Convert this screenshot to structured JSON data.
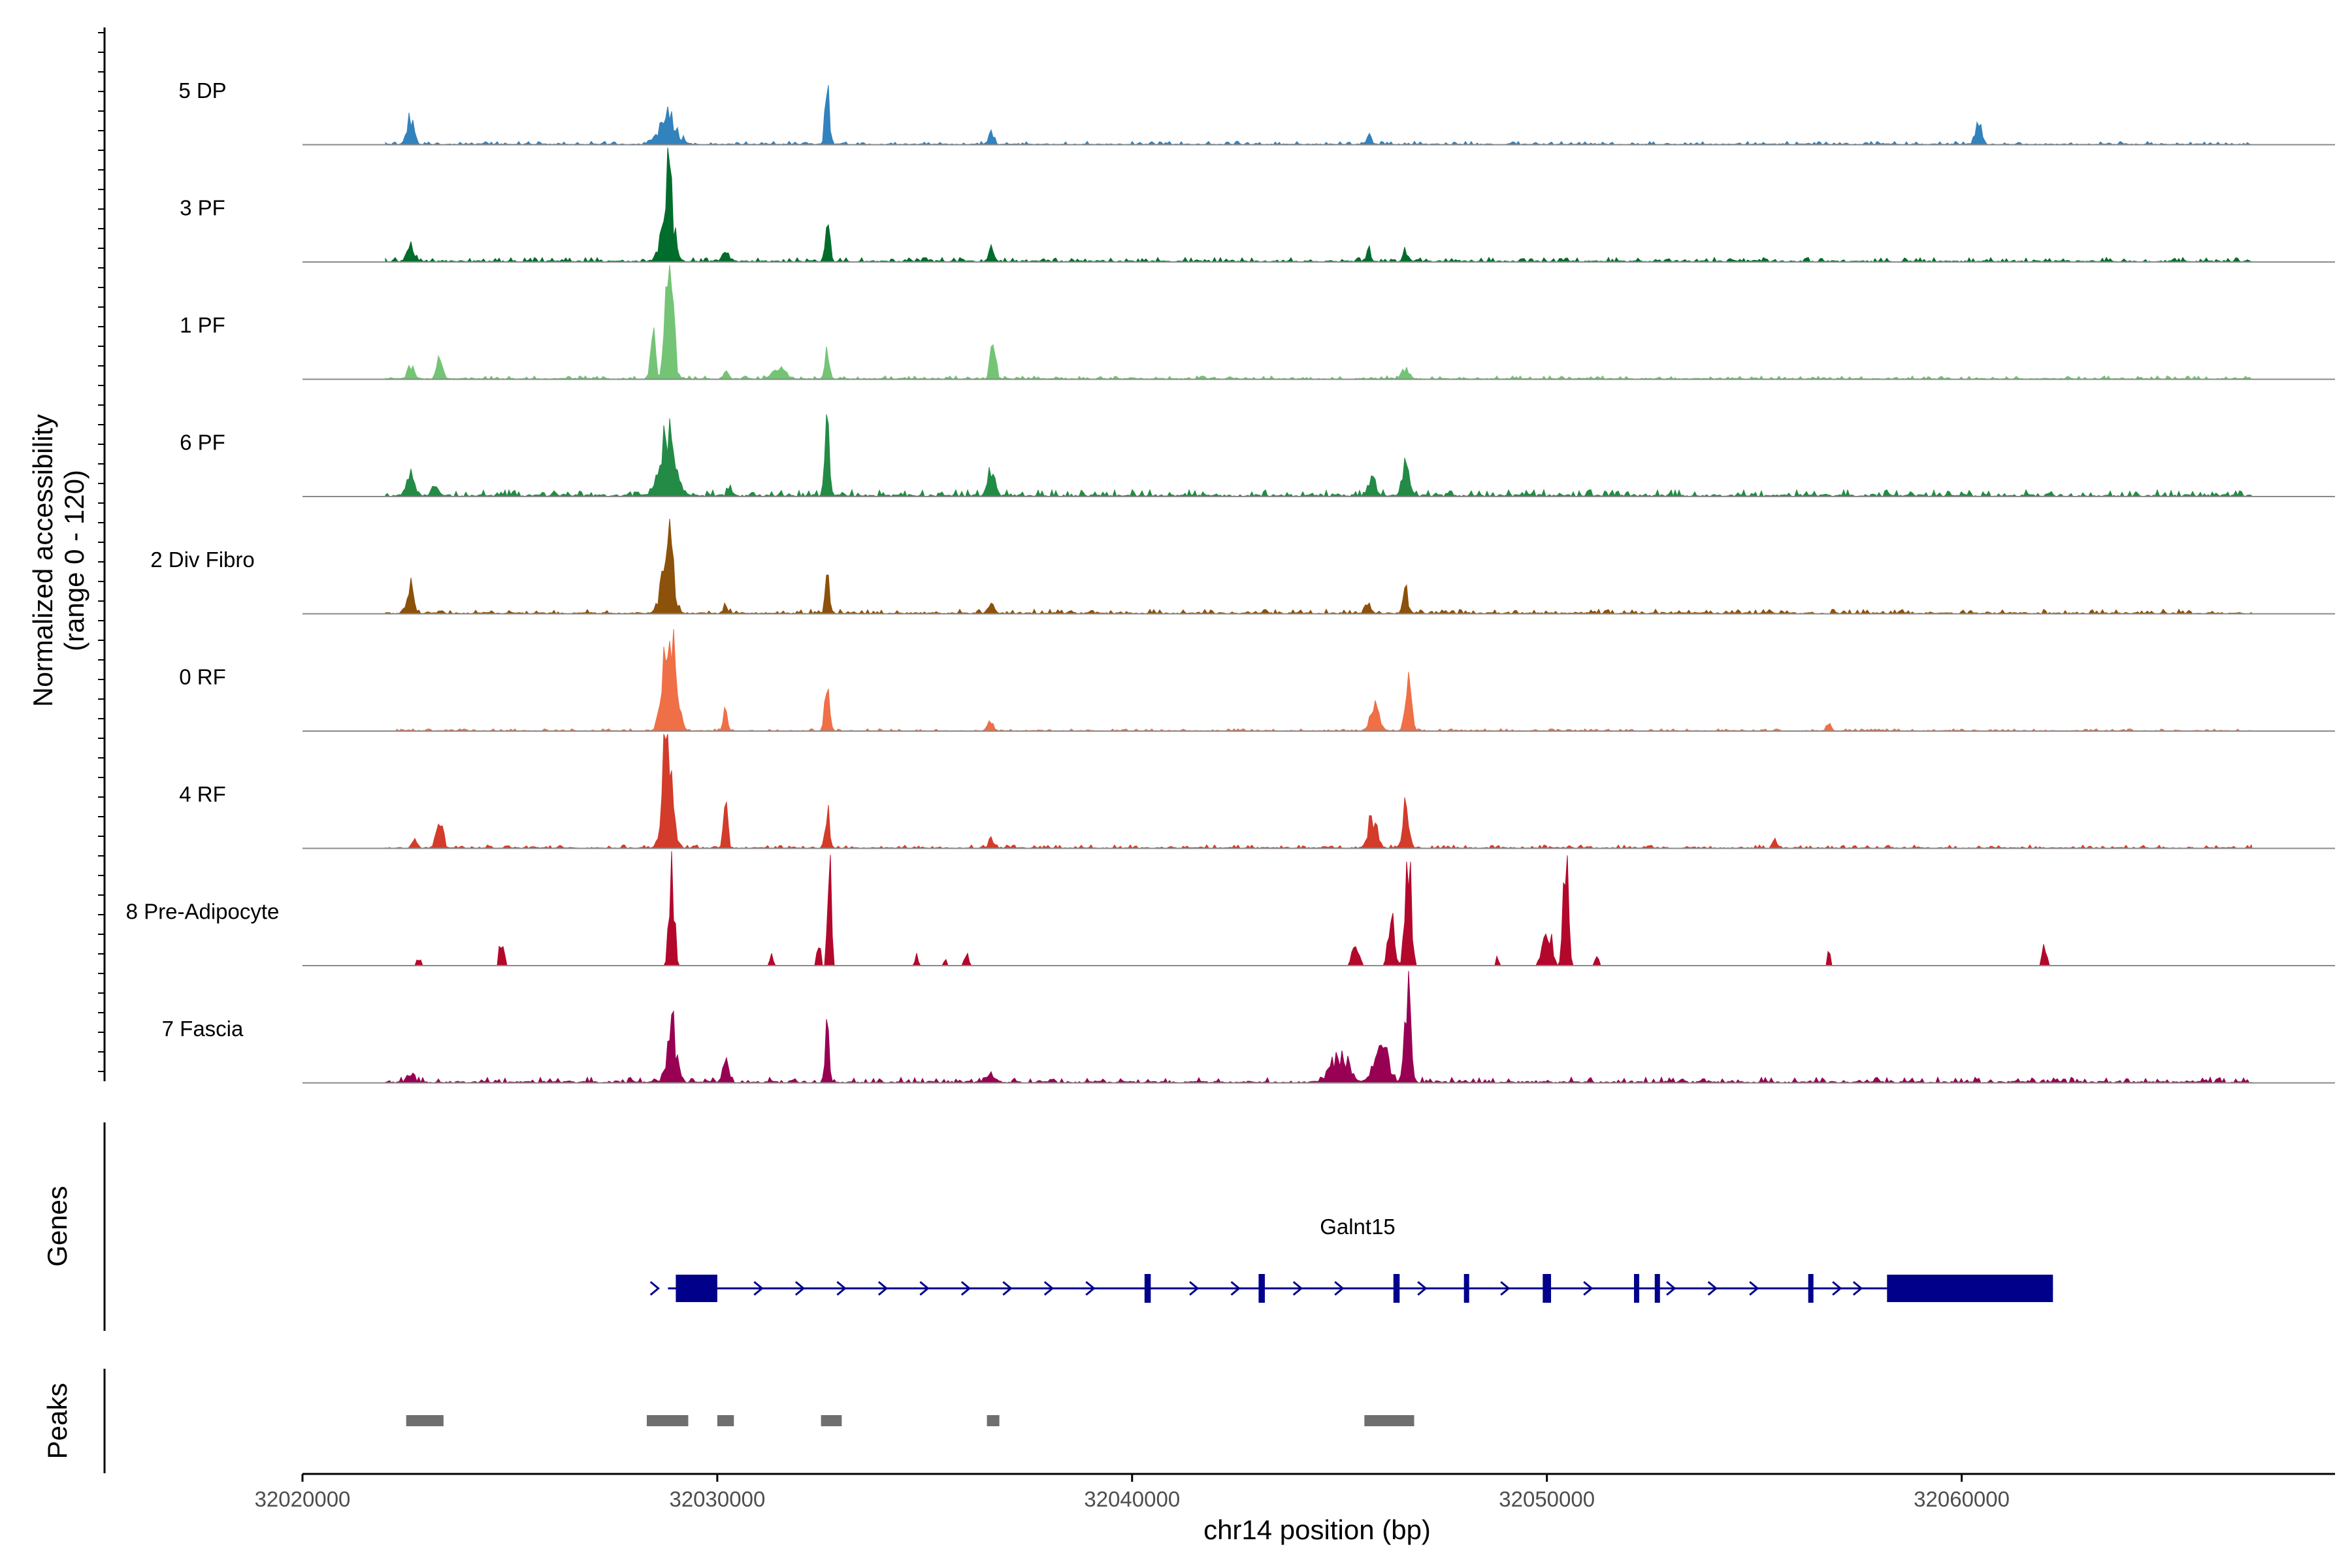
{
  "chart_data": {
    "type": "coverage",
    "title": "",
    "ylabel_line1": "Normalized accessibility",
    "ylabel_line2": "(range 0 - 120)",
    "y_range": [
      0,
      120
    ],
    "xlabel": "chr14 position (bp)",
    "xlim": [
      32020000,
      32069000
    ],
    "x_ticks": [
      32020000,
      32030000,
      32040000,
      32050000,
      32060000
    ],
    "x_tick_labels": [
      "32020000",
      "32030000",
      "32040000",
      "32050000",
      "32060000"
    ],
    "signal_extent": [
      32022000,
      32067000
    ],
    "tracks": [
      {
        "name": "5 DP",
        "color": "#3282BD",
        "baseline": 3,
        "peaks": [
          [
            32022600,
            25,
            80
          ],
          [
            32028800,
            28,
            200
          ],
          [
            32032650,
            60,
            50
          ],
          [
            32036600,
            12,
            60
          ],
          [
            32045700,
            8,
            60
          ],
          [
            32060400,
            22,
            70
          ]
        ]
      },
      {
        "name": "3 PF",
        "color": "#006D2C",
        "baseline": 4,
        "peaks": [
          [
            32022600,
            16,
            80
          ],
          [
            32028800,
            95,
            120
          ],
          [
            32030200,
            12,
            60
          ],
          [
            32032650,
            48,
            50
          ],
          [
            32036600,
            14,
            60
          ],
          [
            32045700,
            10,
            60
          ],
          [
            32046600,
            12,
            60
          ]
        ]
      },
      {
        "name": "1 PF",
        "color": "#74C476",
        "baseline": 3,
        "peaks": [
          [
            32022600,
            15,
            70
          ],
          [
            32023300,
            20,
            70
          ],
          [
            32028450,
            40,
            60
          ],
          [
            32028850,
            120,
            90
          ],
          [
            32030200,
            8,
            60
          ],
          [
            32031500,
            10,
            150
          ],
          [
            32032650,
            30,
            50
          ],
          [
            32036650,
            45,
            60
          ],
          [
            32046600,
            12,
            80
          ]
        ]
      },
      {
        "name": "6 PF",
        "color": "#238B45",
        "baseline": 6,
        "peaks": [
          [
            32022600,
            28,
            80
          ],
          [
            32023200,
            12,
            70
          ],
          [
            32028800,
            75,
            160
          ],
          [
            32030300,
            15,
            50
          ],
          [
            32032650,
            70,
            50
          ],
          [
            32036600,
            25,
            80
          ],
          [
            32045800,
            20,
            80
          ],
          [
            32046600,
            45,
            80
          ]
        ]
      },
      {
        "name": "2 Div Fibro",
        "color": "#8C510A",
        "baseline": 4,
        "peaks": [
          [
            32022600,
            28,
            70
          ],
          [
            32028800,
            75,
            130
          ],
          [
            32030200,
            8,
            60
          ],
          [
            32032650,
            35,
            50
          ],
          [
            32036600,
            12,
            70
          ],
          [
            32045700,
            10,
            60
          ],
          [
            32046600,
            20,
            60
          ]
        ]
      },
      {
        "name": "0 RF",
        "color": "#EF6F46",
        "baseline": 2,
        "peaks": [
          [
            32028850,
            105,
            140
          ],
          [
            32030200,
            20,
            50
          ],
          [
            32032650,
            55,
            50
          ],
          [
            32036600,
            12,
            60
          ],
          [
            32045850,
            30,
            100
          ],
          [
            32046650,
            62,
            70
          ],
          [
            32056800,
            10,
            50
          ]
        ]
      },
      {
        "name": "4 RF",
        "color": "#D33B2B",
        "baseline": 3,
        "peaks": [
          [
            32022700,
            8,
            60
          ],
          [
            32023300,
            25,
            80
          ],
          [
            32028800,
            120,
            110
          ],
          [
            32030200,
            45,
            50
          ],
          [
            32032650,
            40,
            50
          ],
          [
            32036600,
            10,
            60
          ],
          [
            32045800,
            35,
            100
          ],
          [
            32046600,
            40,
            70
          ],
          [
            32055500,
            10,
            50
          ]
        ]
      },
      {
        "name": "8 Pre-Adipocyte",
        "color": "#B3082C",
        "baseline": 0,
        "peaks": [
          [
            32022800,
            8,
            50
          ],
          [
            32024800,
            25,
            60
          ],
          [
            32028900,
            105,
            60
          ],
          [
            32031300,
            12,
            40
          ],
          [
            32032450,
            25,
            40
          ],
          [
            32032700,
            98,
            45
          ],
          [
            32034800,
            10,
            40
          ],
          [
            32035500,
            8,
            40
          ],
          [
            32036000,
            12,
            50
          ],
          [
            32045400,
            25,
            80
          ],
          [
            32046250,
            50,
            70
          ],
          [
            32046650,
            120,
            70
          ],
          [
            32048800,
            8,
            40
          ],
          [
            32050000,
            45,
            100
          ],
          [
            32050450,
            110,
            60
          ],
          [
            32051200,
            10,
            40
          ],
          [
            32056800,
            15,
            30
          ],
          [
            32062000,
            22,
            50
          ]
        ]
      },
      {
        "name": "7 Fascia",
        "color": "#980053",
        "baseline": 5,
        "peaks": [
          [
            32022600,
            8,
            80
          ],
          [
            32028900,
            60,
            110
          ],
          [
            32030200,
            18,
            70
          ],
          [
            32032650,
            52,
            50
          ],
          [
            32036600,
            8,
            80
          ],
          [
            32045000,
            30,
            200
          ],
          [
            32046000,
            42,
            150
          ],
          [
            32046650,
            103,
            70
          ]
        ]
      }
    ],
    "genes": {
      "label": "Genes",
      "gene_name": "Galnt15",
      "color": "#00008B",
      "start": 32029000,
      "end": 32062200,
      "exons": [
        [
          32029000,
          32030000
        ],
        [
          32040300,
          32040450
        ],
        [
          32043050,
          32043200
        ],
        [
          32046300,
          32046450
        ],
        [
          32048000,
          32048100
        ],
        [
          32049900,
          32050100
        ],
        [
          32052100,
          32052200
        ],
        [
          32052600,
          32052700
        ],
        [
          32056300,
          32056400
        ],
        [
          32058200,
          32062200
        ]
      ],
      "intron_arrows": [
        32028500,
        32031000,
        32032000,
        32033000,
        32034000,
        32035000,
        32036000,
        32037000,
        32038000,
        32039000,
        32041500,
        32042500,
        32044000,
        32045000,
        32047000,
        32049000,
        32051000,
        32053000,
        32054000,
        32055000,
        32057000,
        32057500
      ]
    },
    "peaks_track": {
      "label": "Peaks",
      "color": "#6F6F6F",
      "regions": [
        [
          32022500,
          32023400
        ],
        [
          32028300,
          32029300
        ],
        [
          32030000,
          32030400
        ],
        [
          32032500,
          32033000
        ],
        [
          32036500,
          32036800
        ],
        [
          32045600,
          32046800
        ]
      ]
    }
  }
}
